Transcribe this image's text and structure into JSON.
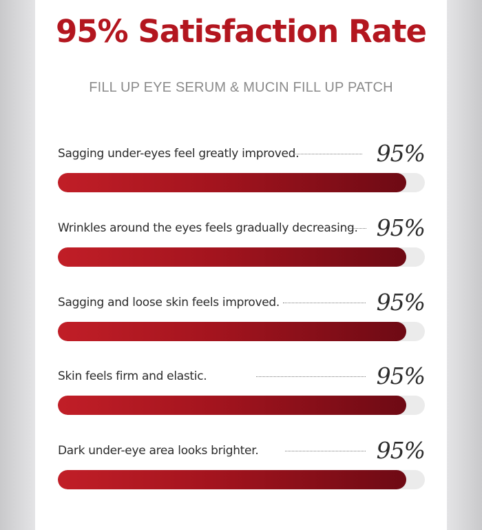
{
  "header": {
    "title": "95% Satisfaction Rate",
    "subtitle": "FILL UP EYE SERUM & MUCIN FILL UP PATCH"
  },
  "colors": {
    "title": "#b3161f",
    "bar_start": "#c11e27",
    "bar_end": "#6e0a14",
    "track": "#ebebeb"
  },
  "items": [
    {
      "label": "Sagging under-eyes feel greatly improved.",
      "percent": "95%",
      "value": 0.95
    },
    {
      "label": "Wrinkles around the eyes feels gradually decreasing.",
      "percent": "95%",
      "value": 0.95
    },
    {
      "label": "Sagging and loose skin feels improved.",
      "percent": "95%",
      "value": 0.95
    },
    {
      "label": "Skin feels firm and elastic.",
      "percent": "95%",
      "value": 0.95
    },
    {
      "label": "Dark under-eye area looks brighter.",
      "percent": "95%",
      "value": 0.95
    }
  ]
}
